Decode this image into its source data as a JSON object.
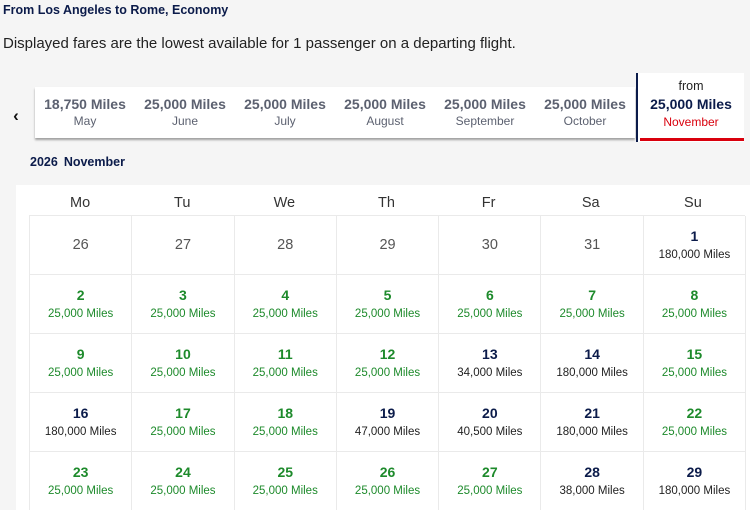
{
  "header": {
    "route_title": "From Los Angeles to Rome, Economy",
    "subtitle": "Displayed fares are the lowest available for 1 passenger on a departing flight."
  },
  "month_nav": {
    "prev_icon": "chevron-left-icon",
    "prev_glyph": "‹",
    "months": [
      {
        "miles": "18,750 Miles",
        "name": "May"
      },
      {
        "miles": "25,000 Miles",
        "name": "June"
      },
      {
        "miles": "25,000 Miles",
        "name": "July"
      },
      {
        "miles": "25,000 Miles",
        "name": "August"
      },
      {
        "miles": "25,000 Miles",
        "name": "September"
      },
      {
        "miles": "25,000 Miles",
        "name": "October"
      }
    ],
    "selected": {
      "from_label": "from",
      "miles": "25,000 Miles",
      "name": "November"
    }
  },
  "calendar": {
    "year": "2026",
    "month": "November",
    "weekdays": [
      "Mo",
      "Tu",
      "We",
      "Th",
      "Fr",
      "Sa",
      "Su"
    ],
    "colors": {
      "low_fare": "#1d8a2b",
      "regular": "#0b1b4a",
      "selected_accent": "#d9000d"
    },
    "rows": [
      [
        {
          "day": "26",
          "price": "",
          "type": "past"
        },
        {
          "day": "27",
          "price": "",
          "type": "past"
        },
        {
          "day": "28",
          "price": "",
          "type": "past"
        },
        {
          "day": "29",
          "price": "",
          "type": "past"
        },
        {
          "day": "30",
          "price": "",
          "type": "past"
        },
        {
          "day": "31",
          "price": "",
          "type": "past"
        },
        {
          "day": "1",
          "price": "180,000 Miles",
          "type": "high"
        }
      ],
      [
        {
          "day": "2",
          "price": "25,000 Miles",
          "type": "low"
        },
        {
          "day": "3",
          "price": "25,000 Miles",
          "type": "low"
        },
        {
          "day": "4",
          "price": "25,000 Miles",
          "type": "low"
        },
        {
          "day": "5",
          "price": "25,000 Miles",
          "type": "low"
        },
        {
          "day": "6",
          "price": "25,000 Miles",
          "type": "low"
        },
        {
          "day": "7",
          "price": "25,000 Miles",
          "type": "low"
        },
        {
          "day": "8",
          "price": "25,000 Miles",
          "type": "low"
        }
      ],
      [
        {
          "day": "9",
          "price": "25,000 Miles",
          "type": "low"
        },
        {
          "day": "10",
          "price": "25,000 Miles",
          "type": "low"
        },
        {
          "day": "11",
          "price": "25,000 Miles",
          "type": "low"
        },
        {
          "day": "12",
          "price": "25,000 Miles",
          "type": "low"
        },
        {
          "day": "13",
          "price": "34,000 Miles",
          "type": "high"
        },
        {
          "day": "14",
          "price": "180,000 Miles",
          "type": "high"
        },
        {
          "day": "15",
          "price": "25,000 Miles",
          "type": "low"
        }
      ],
      [
        {
          "day": "16",
          "price": "180,000 Miles",
          "type": "high"
        },
        {
          "day": "17",
          "price": "25,000 Miles",
          "type": "low"
        },
        {
          "day": "18",
          "price": "25,000 Miles",
          "type": "low"
        },
        {
          "day": "19",
          "price": "47,000 Miles",
          "type": "high"
        },
        {
          "day": "20",
          "price": "40,500 Miles",
          "type": "high"
        },
        {
          "day": "21",
          "price": "180,000 Miles",
          "type": "high"
        },
        {
          "day": "22",
          "price": "25,000 Miles",
          "type": "low"
        }
      ],
      [
        {
          "day": "23",
          "price": "25,000 Miles",
          "type": "low"
        },
        {
          "day": "24",
          "price": "25,000 Miles",
          "type": "low"
        },
        {
          "day": "25",
          "price": "25,000 Miles",
          "type": "low"
        },
        {
          "day": "26",
          "price": "25,000 Miles",
          "type": "low"
        },
        {
          "day": "27",
          "price": "25,000 Miles",
          "type": "low"
        },
        {
          "day": "28",
          "price": "38,000 Miles",
          "type": "high"
        },
        {
          "day": "29",
          "price": "180,000 Miles",
          "type": "high"
        }
      ]
    ]
  }
}
